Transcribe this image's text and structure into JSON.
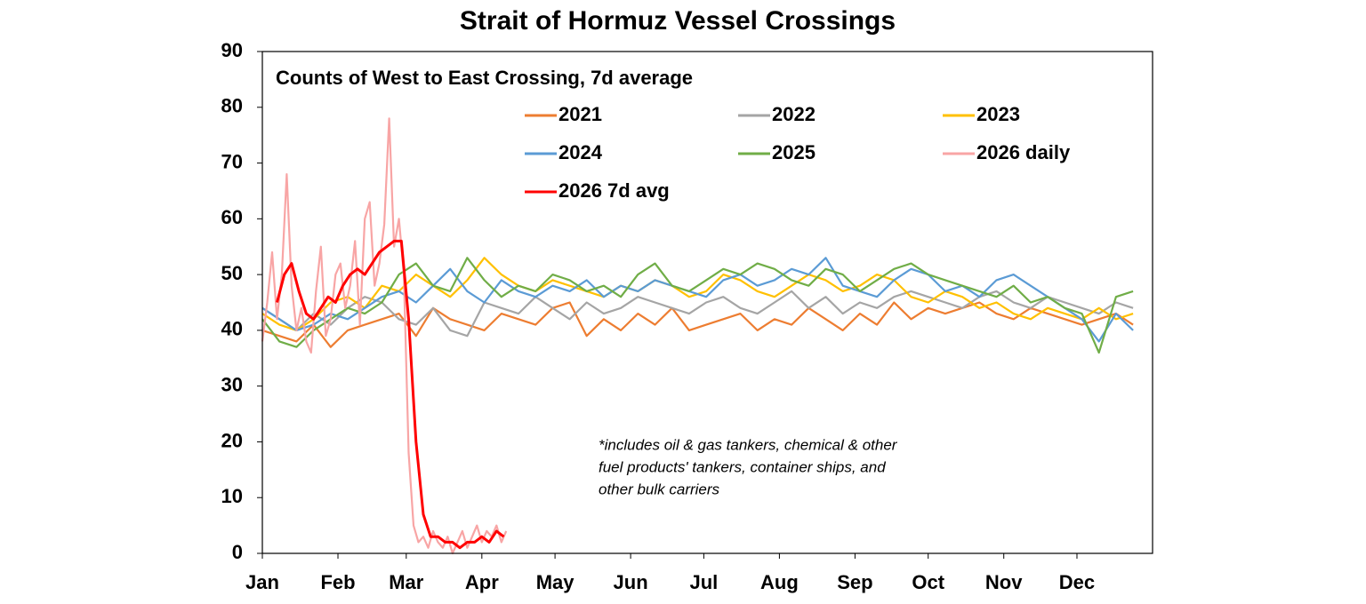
{
  "chart_data": {
    "type": "line",
    "title": "Strait of Hormuz Vessel Crossings",
    "subtitle": "Counts of West to East Crossing, 7d average",
    "note": [
      "*includes oil & gas tankers, chemical & other",
      "fuel products' tankers, container ships, and",
      "other bulk carriers"
    ],
    "xlim": [
      0,
      365
    ],
    "xticks": [
      {
        "value": 0,
        "label": "Jan"
      },
      {
        "value": 31,
        "label": "Feb"
      },
      {
        "value": 59,
        "label": "Mar"
      },
      {
        "value": 90,
        "label": "Apr"
      },
      {
        "value": 120,
        "label": "May"
      },
      {
        "value": 151,
        "label": "Jun"
      },
      {
        "value": 181,
        "label": "Jul"
      },
      {
        "value": 212,
        "label": "Aug"
      },
      {
        "value": 243,
        "label": "Sep"
      },
      {
        "value": 273,
        "label": "Oct"
      },
      {
        "value": 304,
        "label": "Nov"
      },
      {
        "value": 334,
        "label": "Dec"
      }
    ],
    "ylim": [
      0,
      90
    ],
    "yticks": [
      0,
      10,
      20,
      30,
      40,
      50,
      60,
      70,
      80,
      90
    ],
    "grid": false,
    "x": [
      0,
      7,
      14,
      21,
      28,
      35,
      42,
      49,
      56,
      63,
      70,
      77,
      84,
      91,
      98,
      105,
      112,
      119,
      126,
      133,
      140,
      147,
      154,
      161,
      168,
      175,
      182,
      189,
      196,
      203,
      210,
      217,
      224,
      231,
      238,
      245,
      252,
      259,
      266,
      273,
      280,
      287,
      294,
      301,
      308,
      315,
      322,
      329,
      336,
      343,
      350,
      357
    ],
    "series": [
      {
        "name": "2021",
        "color": "#ed7d31",
        "values": [
          40,
          39,
          38,
          41,
          37,
          40,
          41,
          42,
          43,
          39,
          44,
          42,
          41,
          40,
          43,
          42,
          41,
          44,
          45,
          39,
          42,
          40,
          43,
          41,
          44,
          40,
          41,
          42,
          43,
          40,
          42,
          41,
          44,
          42,
          40,
          43,
          41,
          45,
          42,
          44,
          43,
          44,
          45,
          43,
          42,
          44,
          43,
          42,
          41,
          42,
          43,
          41
        ]
      },
      {
        "name": "2022",
        "color": "#a5a5a5",
        "values": [
          44,
          42,
          40,
          43,
          41,
          44,
          46,
          45,
          42,
          41,
          44,
          40,
          39,
          45,
          44,
          43,
          46,
          44,
          42,
          45,
          43,
          44,
          46,
          45,
          44,
          43,
          45,
          46,
          44,
          43,
          45,
          47,
          44,
          46,
          43,
          45,
          44,
          46,
          47,
          46,
          45,
          44,
          46,
          47,
          45,
          44,
          46,
          45,
          44,
          43,
          45,
          44
        ]
      },
      {
        "name": "2023",
        "color": "#ffc000",
        "values": [
          43,
          41,
          40,
          42,
          45,
          46,
          44,
          48,
          47,
          50,
          48,
          46,
          49,
          53,
          50,
          48,
          47,
          49,
          48,
          47,
          46,
          48,
          47,
          49,
          48,
          46,
          47,
          50,
          49,
          47,
          46,
          48,
          50,
          49,
          47,
          48,
          50,
          49,
          46,
          45,
          47,
          46,
          44,
          45,
          43,
          42,
          44,
          43,
          42,
          44,
          42,
          43
        ]
      },
      {
        "name": "2024",
        "color": "#5b9bd5",
        "values": [
          44,
          42,
          40,
          41,
          43,
          42,
          44,
          46,
          47,
          45,
          48,
          51,
          47,
          45,
          49,
          47,
          46,
          48,
          47,
          49,
          46,
          48,
          47,
          49,
          48,
          47,
          46,
          49,
          50,
          48,
          49,
          51,
          50,
          53,
          48,
          47,
          46,
          49,
          51,
          50,
          47,
          48,
          46,
          49,
          50,
          48,
          46,
          44,
          42,
          38,
          43,
          40
        ]
      },
      {
        "name": "2025",
        "color": "#70ad47",
        "values": [
          42,
          38,
          37,
          40,
          42,
          44,
          43,
          45,
          50,
          52,
          48,
          47,
          53,
          49,
          46,
          48,
          47,
          50,
          49,
          47,
          48,
          46,
          50,
          52,
          48,
          47,
          49,
          51,
          50,
          52,
          51,
          49,
          48,
          51,
          50,
          47,
          49,
          51,
          52,
          50,
          49,
          48,
          47,
          46,
          48,
          45,
          46,
          44,
          43,
          36,
          46,
          47
        ]
      },
      {
        "name": "2026 daily",
        "color": "#f8a5a5",
        "x": [
          0,
          2,
          4,
          6,
          8,
          10,
          12,
          14,
          16,
          18,
          20,
          22,
          24,
          26,
          28,
          30,
          32,
          34,
          36,
          38,
          40,
          42,
          44,
          46,
          48,
          50,
          52,
          54,
          56,
          58,
          60,
          62,
          64,
          66,
          68,
          70,
          72,
          74,
          76,
          78,
          80,
          82,
          84,
          86,
          88,
          90,
          92,
          94,
          96,
          98,
          100
        ],
        "values": [
          38,
          45,
          54,
          42,
          50,
          68,
          48,
          40,
          44,
          38,
          36,
          47,
          55,
          39,
          42,
          50,
          52,
          44,
          48,
          56,
          41,
          60,
          63,
          48,
          52,
          59,
          78,
          55,
          60,
          50,
          18,
          5,
          2,
          3,
          1,
          4,
          2,
          1,
          3,
          0,
          2,
          4,
          1,
          3,
          5,
          2,
          4,
          3,
          5,
          2,
          4
        ]
      },
      {
        "name": "2026 7d avg",
        "color": "#ff0000",
        "x": [
          6,
          9,
          12,
          15,
          18,
          21,
          24,
          27,
          30,
          33,
          36,
          39,
          42,
          45,
          48,
          51,
          54,
          57,
          60,
          63,
          66,
          69,
          72,
          75,
          78,
          81,
          84,
          87,
          90,
          93,
          96,
          99
        ],
        "values": [
          45,
          50,
          52,
          47,
          43,
          42,
          44,
          46,
          45,
          48,
          50,
          51,
          50,
          52,
          54,
          55,
          56,
          56,
          42,
          20,
          7,
          3,
          3,
          2,
          2,
          1,
          2,
          2,
          3,
          2,
          4,
          3
        ]
      }
    ]
  }
}
